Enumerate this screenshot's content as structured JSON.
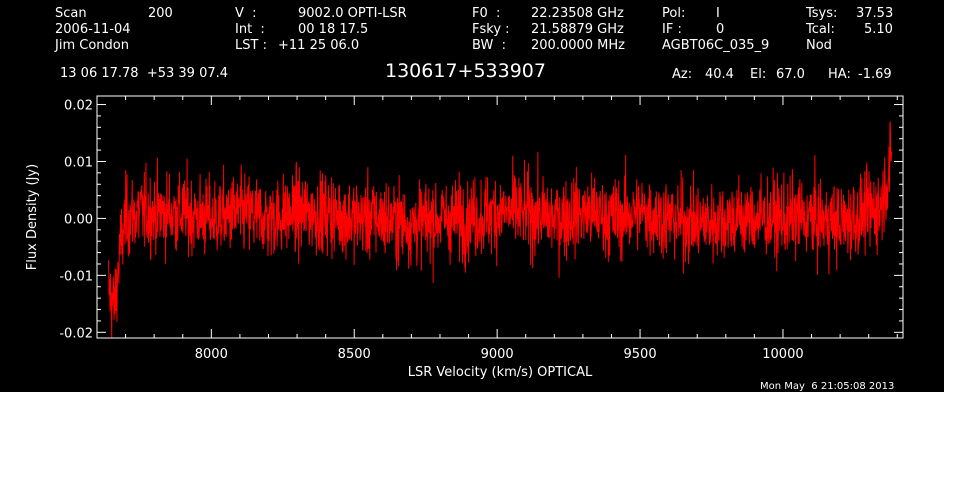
{
  "header": {
    "scan_label": "Scan",
    "scan_value": "200",
    "date": "2006-11-04",
    "observer": "Jim Condon",
    "v_label": "V  :",
    "v_value": "9002.0 OPTI-LSR",
    "int_label": "Int  :",
    "int_value": "00 18 17.5",
    "lst_label": "LST :",
    "lst_value": "+11 25 06.0",
    "f0_label": "F0  :",
    "f0_value": "22.23508 GHz",
    "fsky_label": "Fsky :",
    "fsky_value": "21.58879 GHz",
    "bw_label": "BW  :",
    "bw_value": "200.0000 MHz",
    "pol_label": "Pol:",
    "pol_value": "I",
    "if_label": "IF :",
    "if_value": "0",
    "project": "AGBT06C_035_9",
    "tsys_label": "Tsys:",
    "tsys_value": "37.53",
    "tcal_label": "Tcal:",
    "tcal_value": "5.10",
    "mode": "Nod",
    "coords": "13 06 17.78  +53 39 07.4",
    "source": "130617+533907",
    "az_label": "Az:",
    "az_value": "40.4",
    "el_label": "El:",
    "el_value": "67.0",
    "ha_label": "HA:",
    "ha_value": "-1.69"
  },
  "timestamp": "Mon May  6 21:05:08 2013",
  "colors": {
    "background": "#000000",
    "axes": "#ffffff",
    "series": "#ff0000"
  },
  "chart_data": {
    "type": "line",
    "xlabel": "LSR Velocity (km/s) OPTICAL",
    "ylabel": "Flux Density (Jy)",
    "xlim": [
      7600,
      10420
    ],
    "ylim": [
      -0.021,
      0.0215
    ],
    "x_ticks": [
      8000,
      8500,
      9000,
      9500,
      10000
    ],
    "x_tick_labels": [
      "8000",
      "8500",
      "9000",
      "9500",
      "10000"
    ],
    "y_ticks": [
      -0.02,
      -0.01,
      0.0,
      0.01,
      0.02
    ],
    "y_tick_labels": [
      "-0.02",
      "-0.01",
      "0.00",
      "0.01",
      "0.02"
    ],
    "grid": false,
    "series": [
      {
        "color": "#ff0000",
        "x": [
          7640,
          7660,
          7680,
          7700,
          7750,
          7800,
          7900,
          8000,
          8100,
          8200,
          8300,
          8400,
          8500,
          8600,
          8700,
          8800,
          8900,
          9000,
          9100,
          9200,
          9300,
          9400,
          9500,
          9600,
          9700,
          9800,
          9900,
          10000,
          10100,
          10200,
          10300,
          10340,
          10360,
          10380
        ],
        "values": [
          -0.012,
          -0.016,
          -0.006,
          0.0,
          0.001,
          0.001,
          0.001,
          0.0,
          0.001,
          0.0,
          0.001,
          0.001,
          0.0,
          0.0,
          -0.001,
          0.0,
          0.0,
          0.001,
          0.001,
          0.0,
          0.001,
          0.0,
          0.001,
          0.0,
          -0.001,
          0.0,
          0.0,
          0.0,
          0.0,
          -0.001,
          0.001,
          0.002,
          0.006,
          0.01
        ],
        "noise_rms": 0.0035
      }
    ]
  }
}
